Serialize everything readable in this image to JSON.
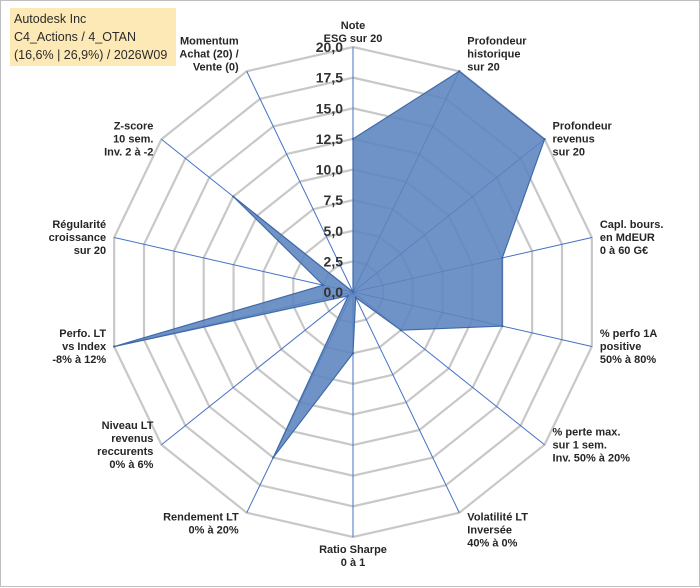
{
  "header": {
    "line1": "Autodesk Inc",
    "line2": "C4_Actions / 4_OTAN",
    "line3": "(16,6% | 26,9%) / 2026W09"
  },
  "colors": {
    "fill": "#5b84bf",
    "stroke": "#3f6aa8",
    "grid": "#c8c8c8",
    "spoke": "#4472c4",
    "title_bg": "#fde9b6"
  },
  "chart_data": {
    "type": "radar",
    "title": "",
    "r_range": [
      0,
      20
    ],
    "r_ticks": [
      "0,0",
      "2,5",
      "5,0",
      "7,5",
      "10,0",
      "12,5",
      "15,0",
      "17,5",
      "20,0"
    ],
    "axes": [
      [
        "Note",
        "ESG sur 20"
      ],
      [
        "Profondeur",
        "historique",
        "sur 20"
      ],
      [
        "Profondeur",
        "revenus",
        "sur 20"
      ],
      [
        "Capl. bours.",
        "en MdEUR",
        "0 à 60 G€"
      ],
      [
        "% perfo 1A",
        "positive",
        "50% à 80%"
      ],
      [
        "% perte max.",
        "sur 1 sem.",
        "Inv. 50% à 20%"
      ],
      [
        "Volatilité LT",
        "Inversée",
        "40% à 0%"
      ],
      [
        "Ratio Sharpe",
        "0 à 1"
      ],
      [
        "Rendement LT",
        "0% à 20%"
      ],
      [
        "Niveau LT",
        "revenus",
        "reccurents",
        "0% à 6%"
      ],
      [
        "Perfo. LT",
        "vs Index",
        "-8% à 12%"
      ],
      [
        "Régularité",
        "croissance",
        "sur 20"
      ],
      [
        "Z-score",
        "10 sem.",
        "Inv. 2 à -2"
      ],
      [
        "Momentum",
        "Achat (20) /",
        "Vente (0)"
      ]
    ],
    "values": [
      12.5,
      20,
      20,
      12.5,
      12.5,
      5,
      0.5,
      5,
      15,
      0.5,
      20,
      2.5,
      12.5,
      0
    ]
  }
}
